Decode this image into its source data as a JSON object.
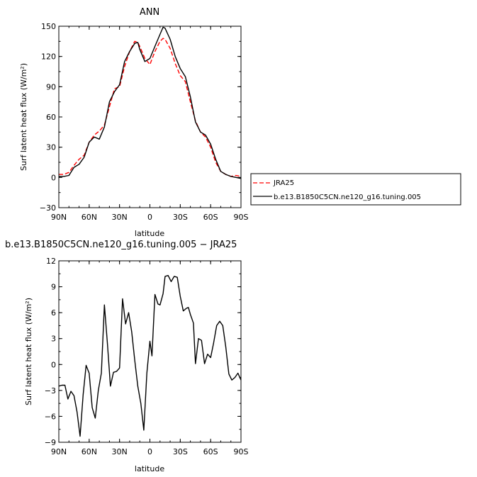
{
  "chart_data": [
    {
      "type": "line",
      "title": "ANN",
      "xlabel": "latitude",
      "ylabel": "Surf latent heat flux (W/m²)",
      "xlim": [
        90,
        -90
      ],
      "ylim": [
        -30,
        150
      ],
      "xticks": [
        90,
        60,
        30,
        0,
        -30,
        -60,
        -90
      ],
      "xtick_labels": [
        "90N",
        "60N",
        "30N",
        "0",
        "30S",
        "60S",
        "90S"
      ],
      "yticks": [
        -30,
        0,
        30,
        60,
        90,
        120,
        150
      ],
      "ytick_labels": [
        "−30",
        "0",
        "30",
        "60",
        "90",
        "120",
        "150"
      ],
      "legend_placement": "right",
      "series": [
        {
          "name": "JRA25",
          "color": "#ff0000",
          "dash": "dashed",
          "x": [
            90,
            85,
            80,
            75,
            70,
            65,
            60,
            55,
            50,
            45,
            40,
            35,
            30,
            25,
            20,
            15,
            12,
            10,
            5,
            0,
            -5,
            -10,
            -13,
            -15,
            -20,
            -25,
            -30,
            -35,
            -40,
            -45,
            -50,
            -55,
            -60,
            -65,
            -70,
            -75,
            -80,
            -85,
            -90
          ],
          "y": [
            3,
            3,
            5,
            12,
            18,
            22,
            35,
            42,
            46,
            52,
            70,
            88,
            90,
            110,
            125,
            135,
            134,
            130,
            118,
            112,
            125,
            135,
            138,
            137,
            128,
            113,
            101,
            95,
            75,
            56,
            45,
            40,
            30,
            15,
            6,
            3,
            1,
            2,
            1
          ],
          "values": [
            3,
            3,
            5,
            12,
            18,
            22,
            35,
            42,
            46,
            52,
            70,
            88,
            90,
            110,
            125,
            135,
            134,
            130,
            118,
            112,
            125,
            135,
            138,
            137,
            128,
            113,
            101,
            95,
            75,
            56,
            45,
            40,
            30,
            15,
            6,
            3,
            1,
            2,
            1
          ]
        },
        {
          "name": "b.e13.B1850C5CN.ne120_g16.tuning.005",
          "color": "#000000",
          "dash": "solid",
          "x": [
            90,
            85,
            80,
            75,
            70,
            65,
            60,
            55,
            50,
            45,
            40,
            35,
            30,
            25,
            20,
            15,
            12,
            10,
            5,
            0,
            -5,
            -10,
            -13,
            -15,
            -20,
            -25,
            -30,
            -35,
            -40,
            -45,
            -50,
            -55,
            -60,
            -65,
            -70,
            -75,
            -80,
            -85,
            -90
          ],
          "y": [
            1,
            1,
            2,
            10,
            13,
            20,
            35,
            40,
            38,
            50,
            75,
            85,
            92,
            115,
            125,
            133,
            134,
            127,
            115,
            118,
            130,
            142,
            149,
            148,
            137,
            120,
            108,
            100,
            80,
            55,
            45,
            42,
            33,
            18,
            6,
            3,
            1,
            0,
            -1
          ],
          "values": [
            1,
            1,
            2,
            10,
            13,
            20,
            35,
            40,
            38,
            50,
            75,
            85,
            92,
            115,
            125,
            133,
            134,
            127,
            115,
            118,
            130,
            142,
            149,
            148,
            137,
            120,
            108,
            100,
            80,
            55,
            45,
            42,
            33,
            18,
            6,
            3,
            1,
            0,
            -1
          ]
        }
      ]
    },
    {
      "type": "line",
      "title": "b.e13.B1850C5CN.ne120_g16.tuning.005 − JRA25",
      "xlabel": "latitude",
      "ylabel": "Surf latent heat flux (W/m²)",
      "xlim": [
        90,
        -90
      ],
      "ylim": [
        -9,
        12
      ],
      "xticks": [
        90,
        60,
        30,
        0,
        -30,
        -60,
        -90
      ],
      "xtick_labels": [
        "90N",
        "60N",
        "30N",
        "0",
        "30S",
        "60S",
        "90S"
      ],
      "yticks": [
        -9,
        -6,
        -3,
        0,
        3,
        6,
        9,
        12
      ],
      "ytick_labels": [
        "−9",
        "−6",
        "−3",
        "0",
        "3",
        "6",
        "9",
        "12"
      ],
      "series": [
        {
          "color": "#000000",
          "dash": "solid",
          "x": [
            90,
            87,
            84,
            81,
            78,
            75,
            72,
            69,
            66,
            63,
            60,
            57,
            54,
            51,
            48,
            45,
            42,
            39,
            36,
            33,
            30,
            27,
            24,
            21,
            18,
            15,
            12,
            9,
            6,
            3,
            0,
            -2,
            -5,
            -8,
            -10,
            -13,
            -15,
            -18,
            -21,
            -24,
            -27,
            -30,
            -33,
            -36,
            -38,
            -40,
            -43,
            -45,
            -48,
            -51,
            -54,
            -57,
            -60,
            -63,
            -66,
            -69,
            -72,
            -75,
            -78,
            -81,
            -84,
            -87,
            -90
          ],
          "y": [
            -2.5,
            -2.4,
            -2.4,
            -4.0,
            -3.1,
            -3.6,
            -5.5,
            -8.3,
            -3.5,
            -0.1,
            -1.0,
            -5.0,
            -6.2,
            -3.0,
            -1.0,
            6.9,
            2.5,
            -2.5,
            -0.9,
            -0.8,
            -0.4,
            7.6,
            4.7,
            6.0,
            3.8,
            0.5,
            -2.5,
            -4.5,
            -7.6,
            -1.0,
            2.7,
            1.0,
            8.1,
            7.0,
            6.9,
            8.2,
            10.2,
            10.3,
            9.6,
            10.2,
            10.1,
            7.9,
            6.2,
            6.5,
            6.6,
            5.8,
            4.8,
            0.1,
            3.0,
            2.8,
            0.1,
            1.2,
            0.8,
            2.5,
            4.5,
            5.0,
            4.5,
            2.0,
            -1.1,
            -1.8,
            -1.5,
            -1.0,
            -1.8
          ]
        }
      ]
    }
  ]
}
